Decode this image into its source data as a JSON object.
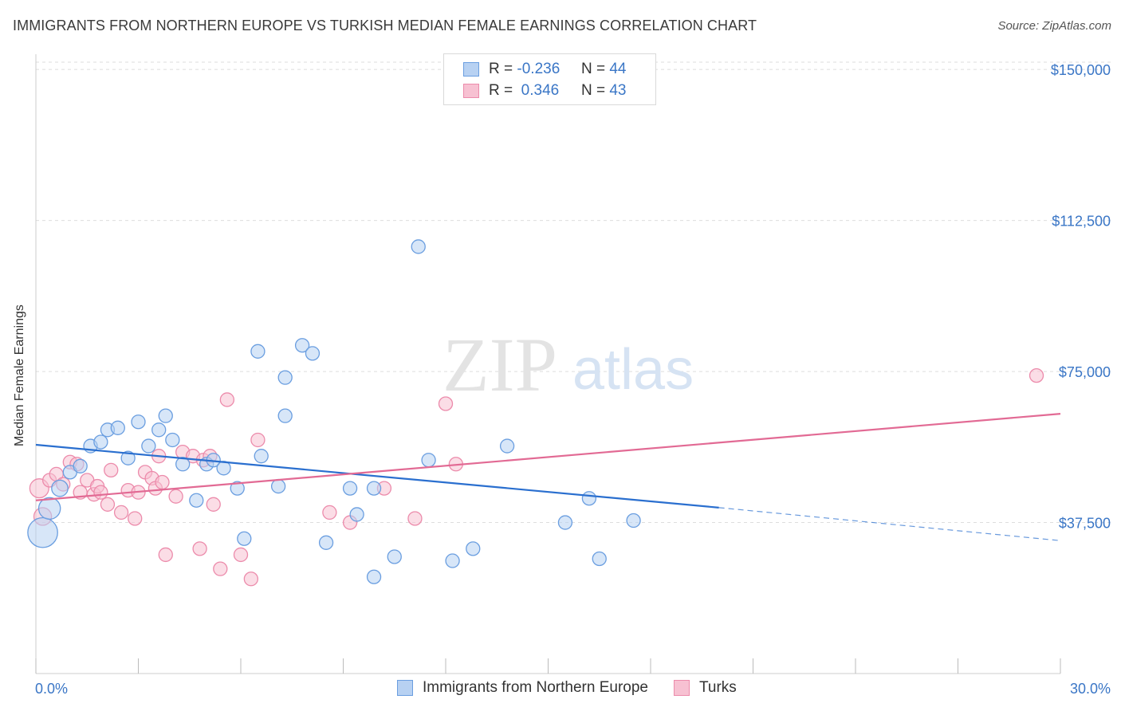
{
  "title": "IMMIGRANTS FROM NORTHERN EUROPE VS TURKISH MEDIAN FEMALE EARNINGS CORRELATION CHART",
  "source": "Source: ZipAtlas.com",
  "watermark": {
    "zip": "ZIP",
    "atlas": "atlas"
  },
  "legend_top": {
    "series1": {
      "r_label": "R =",
      "r_value": "-0.236",
      "n_label": "N =",
      "n_value": "44"
    },
    "series2": {
      "r_label": "R =",
      "r_value": " 0.346",
      "n_label": "N =",
      "n_value": "43"
    }
  },
  "colors": {
    "blue_fill": "#b7d1f2",
    "blue_stroke": "#6a9ee0",
    "blue_line": "#2a6fcf",
    "pink_fill": "#f7c1d2",
    "pink_stroke": "#ec8bab",
    "pink_line": "#e26a94",
    "grid": "#dddddd",
    "tick_text": "#3a76c6"
  },
  "chart_data": {
    "type": "scatter",
    "title": "IMMIGRANTS FROM NORTHERN EUROPE VS TURKISH MEDIAN FEMALE EARNINGS CORRELATION CHART",
    "xlabel": "",
    "ylabel": "Median Female Earnings",
    "xlim": [
      0,
      30
    ],
    "ylim": [
      0,
      153000
    ],
    "x_tick_labels": [
      {
        "value": 0,
        "label": "0.0%"
      },
      {
        "value": 30,
        "label": "30.0%"
      }
    ],
    "y_ticks": [
      {
        "value": 37500,
        "label": "$37,500"
      },
      {
        "value": 75000,
        "label": "$75,000"
      },
      {
        "value": 112500,
        "label": "$112,500"
      },
      {
        "value": 150000,
        "label": "$150,000"
      }
    ],
    "grid": true,
    "legend_position": "bottom",
    "series": [
      {
        "name": "Immigrants from Northern Europe",
        "color": "blue",
        "points": [
          {
            "x": 0.2,
            "y": 35000,
            "s": 2.2
          },
          {
            "x": 0.4,
            "y": 41000,
            "s": 1.6
          },
          {
            "x": 0.7,
            "y": 46000,
            "s": 1.2
          },
          {
            "x": 1.0,
            "y": 50000,
            "s": 1
          },
          {
            "x": 1.3,
            "y": 51500,
            "s": 1
          },
          {
            "x": 1.6,
            "y": 56500,
            "s": 1
          },
          {
            "x": 1.9,
            "y": 57500,
            "s": 1
          },
          {
            "x": 2.1,
            "y": 60500,
            "s": 1
          },
          {
            "x": 2.4,
            "y": 61000,
            "s": 1
          },
          {
            "x": 2.7,
            "y": 53500,
            "s": 1
          },
          {
            "x": 3.0,
            "y": 62500,
            "s": 1
          },
          {
            "x": 3.3,
            "y": 56500,
            "s": 1
          },
          {
            "x": 3.6,
            "y": 60500,
            "s": 1
          },
          {
            "x": 3.8,
            "y": 64000,
            "s": 1
          },
          {
            "x": 4.0,
            "y": 58000,
            "s": 1
          },
          {
            "x": 4.3,
            "y": 52000,
            "s": 1
          },
          {
            "x": 4.7,
            "y": 43000,
            "s": 1
          },
          {
            "x": 5.0,
            "y": 52000,
            "s": 1
          },
          {
            "x": 5.2,
            "y": 53000,
            "s": 1
          },
          {
            "x": 5.5,
            "y": 51000,
            "s": 1
          },
          {
            "x": 5.9,
            "y": 46000,
            "s": 1
          },
          {
            "x": 6.1,
            "y": 33500,
            "s": 1
          },
          {
            "x": 6.5,
            "y": 80000,
            "s": 1
          },
          {
            "x": 6.6,
            "y": 54000,
            "s": 1
          },
          {
            "x": 7.1,
            "y": 46500,
            "s": 1
          },
          {
            "x": 7.3,
            "y": 64000,
            "s": 1
          },
          {
            "x": 7.3,
            "y": 73500,
            "s": 1
          },
          {
            "x": 7.8,
            "y": 81500,
            "s": 1
          },
          {
            "x": 8.1,
            "y": 79500,
            "s": 1
          },
          {
            "x": 8.5,
            "y": 32500,
            "s": 1
          },
          {
            "x": 9.2,
            "y": 46000,
            "s": 1
          },
          {
            "x": 9.4,
            "y": 39500,
            "s": 1
          },
          {
            "x": 9.9,
            "y": 24000,
            "s": 1
          },
          {
            "x": 9.9,
            "y": 46000,
            "s": 1
          },
          {
            "x": 10.5,
            "y": 29000,
            "s": 1
          },
          {
            "x": 11.2,
            "y": 106000,
            "s": 1
          },
          {
            "x": 11.5,
            "y": 53000,
            "s": 1
          },
          {
            "x": 12.2,
            "y": 28000,
            "s": 1
          },
          {
            "x": 12.8,
            "y": 31000,
            "s": 1
          },
          {
            "x": 13.8,
            "y": 56500,
            "s": 1
          },
          {
            "x": 15.5,
            "y": 37500,
            "s": 1
          },
          {
            "x": 16.2,
            "y": 43500,
            "s": 1
          },
          {
            "x": 16.5,
            "y": 28500,
            "s": 1
          },
          {
            "x": 17.5,
            "y": 38000,
            "s": 1
          }
        ],
        "trend_solid": {
          "x": [
            0,
            20
          ],
          "y": [
            56800,
            41200
          ]
        },
        "trend_dashed": {
          "x": [
            20,
            30
          ],
          "y": [
            41200,
            33000
          ]
        }
      },
      {
        "name": "Turks",
        "color": "pink",
        "points": [
          {
            "x": 0.1,
            "y": 46000,
            "s": 1.4
          },
          {
            "x": 0.2,
            "y": 39000,
            "s": 1.3
          },
          {
            "x": 0.4,
            "y": 48000,
            "s": 1
          },
          {
            "x": 0.6,
            "y": 49500,
            "s": 1
          },
          {
            "x": 0.8,
            "y": 47000,
            "s": 1
          },
          {
            "x": 1.0,
            "y": 52500,
            "s": 1
          },
          {
            "x": 1.2,
            "y": 52000,
            "s": 1
          },
          {
            "x": 1.3,
            "y": 45000,
            "s": 1
          },
          {
            "x": 1.5,
            "y": 48000,
            "s": 1
          },
          {
            "x": 1.7,
            "y": 44500,
            "s": 1
          },
          {
            "x": 1.8,
            "y": 46500,
            "s": 1
          },
          {
            "x": 1.9,
            "y": 45000,
            "s": 1
          },
          {
            "x": 2.1,
            "y": 42000,
            "s": 1
          },
          {
            "x": 2.2,
            "y": 50500,
            "s": 1
          },
          {
            "x": 2.5,
            "y": 40000,
            "s": 1
          },
          {
            "x": 2.7,
            "y": 45500,
            "s": 1
          },
          {
            "x": 2.9,
            "y": 38500,
            "s": 1
          },
          {
            "x": 3.0,
            "y": 45000,
            "s": 1
          },
          {
            "x": 3.2,
            "y": 50000,
            "s": 1
          },
          {
            "x": 3.4,
            "y": 48500,
            "s": 1
          },
          {
            "x": 3.5,
            "y": 46000,
            "s": 1
          },
          {
            "x": 3.6,
            "y": 54000,
            "s": 1
          },
          {
            "x": 3.7,
            "y": 47500,
            "s": 1
          },
          {
            "x": 3.8,
            "y": 29500,
            "s": 1
          },
          {
            "x": 4.1,
            "y": 44000,
            "s": 1
          },
          {
            "x": 4.3,
            "y": 55000,
            "s": 1
          },
          {
            "x": 4.6,
            "y": 54000,
            "s": 1
          },
          {
            "x": 4.8,
            "y": 31000,
            "s": 1
          },
          {
            "x": 4.9,
            "y": 53000,
            "s": 1
          },
          {
            "x": 5.1,
            "y": 54000,
            "s": 1
          },
          {
            "x": 5.2,
            "y": 42000,
            "s": 1
          },
          {
            "x": 5.4,
            "y": 26000,
            "s": 1
          },
          {
            "x": 5.6,
            "y": 68000,
            "s": 1
          },
          {
            "x": 6.0,
            "y": 29500,
            "s": 1
          },
          {
            "x": 6.3,
            "y": 23500,
            "s": 1
          },
          {
            "x": 6.5,
            "y": 58000,
            "s": 1
          },
          {
            "x": 8.6,
            "y": 40000,
            "s": 1
          },
          {
            "x": 9.2,
            "y": 37500,
            "s": 1
          },
          {
            "x": 10.2,
            "y": 46000,
            "s": 1
          },
          {
            "x": 11.1,
            "y": 38500,
            "s": 1
          },
          {
            "x": 12.0,
            "y": 67000,
            "s": 1
          },
          {
            "x": 12.3,
            "y": 52000,
            "s": 1
          },
          {
            "x": 29.3,
            "y": 74000,
            "s": 1
          }
        ],
        "trend_solid": {
          "x": [
            0,
            30
          ],
          "y": [
            43000,
            64500
          ]
        }
      }
    ]
  }
}
